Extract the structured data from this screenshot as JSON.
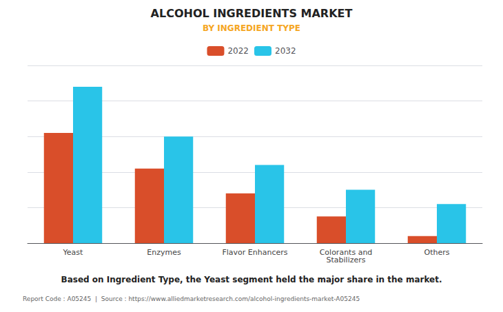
{
  "chart_data": {
    "type": "bar",
    "title": "ALCOHOL INGREDIENTS MARKET",
    "subtitle": "BY INGREDIENT TYPE",
    "categories": [
      "Yeast",
      "Enzymes",
      "Flavor Enhancers",
      "Colorants and\nStabilizers",
      "Others"
    ],
    "series": [
      {
        "name": "2022",
        "color": "#D94E2A",
        "values": [
          0.62,
          0.42,
          0.28,
          0.15,
          0.04
        ]
      },
      {
        "name": "2032",
        "color": "#29C4E8",
        "values": [
          0.88,
          0.6,
          0.44,
          0.3,
          0.22
        ]
      }
    ],
    "ylim": [
      0,
      1.0
    ],
    "yticks": [
      0,
      0.2,
      0.4,
      0.6,
      0.8,
      1.0
    ],
    "grid": true,
    "legend": "top",
    "tick_labels": "x",
    "annotations": [
      "Based on Ingredient Type, the Yeast segment held the major share in the market.",
      "Report Code : A05245  |  Source : https://www.alliedmarketresearch.com/alcohol-ingredients-market-A05245"
    ]
  }
}
